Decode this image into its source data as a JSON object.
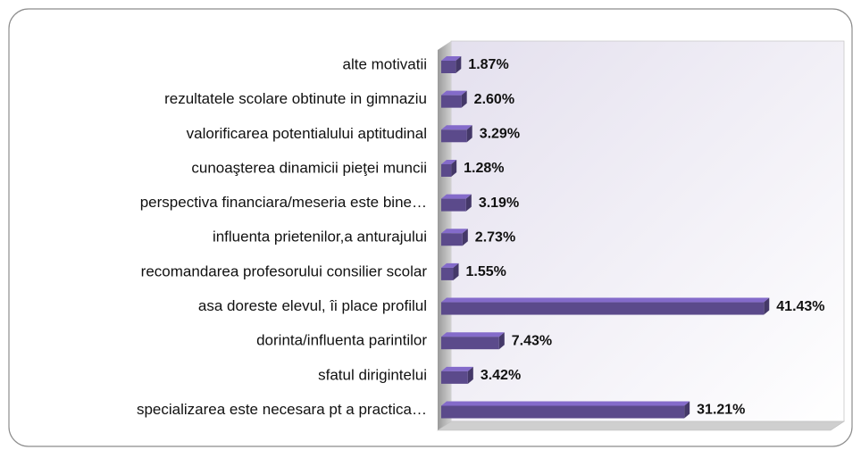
{
  "chart_data": {
    "type": "bar",
    "orientation": "horizontal",
    "categories": [
      "alte motivatii",
      "rezultatele scolare obtinute in gimnaziu",
      "valorificarea potentialului aptitudinal",
      "cunoaşterea dinamicii pieţei muncii",
      "perspectiva financiara/meseria este bine…",
      "influenta prietenilor,a anturajului",
      "recomandarea profesorului consilier scolar",
      "asa doreste elevul, îi place profilul",
      "dorinta/influenta parintilor",
      "sfatul dirigintelui",
      "specializarea este necesara pt a practica…"
    ],
    "values": [
      1.87,
      2.6,
      3.29,
      1.28,
      3.19,
      2.73,
      1.55,
      41.43,
      7.43,
      3.42,
      31.21
    ],
    "value_labels": [
      "1.87%",
      "2.60%",
      "3.29%",
      "1.28%",
      "3.19%",
      "2.73%",
      "1.55%",
      "41.43%",
      "7.43%",
      "3.42%",
      "31.21%"
    ],
    "color": "#5b4a8b"
  }
}
